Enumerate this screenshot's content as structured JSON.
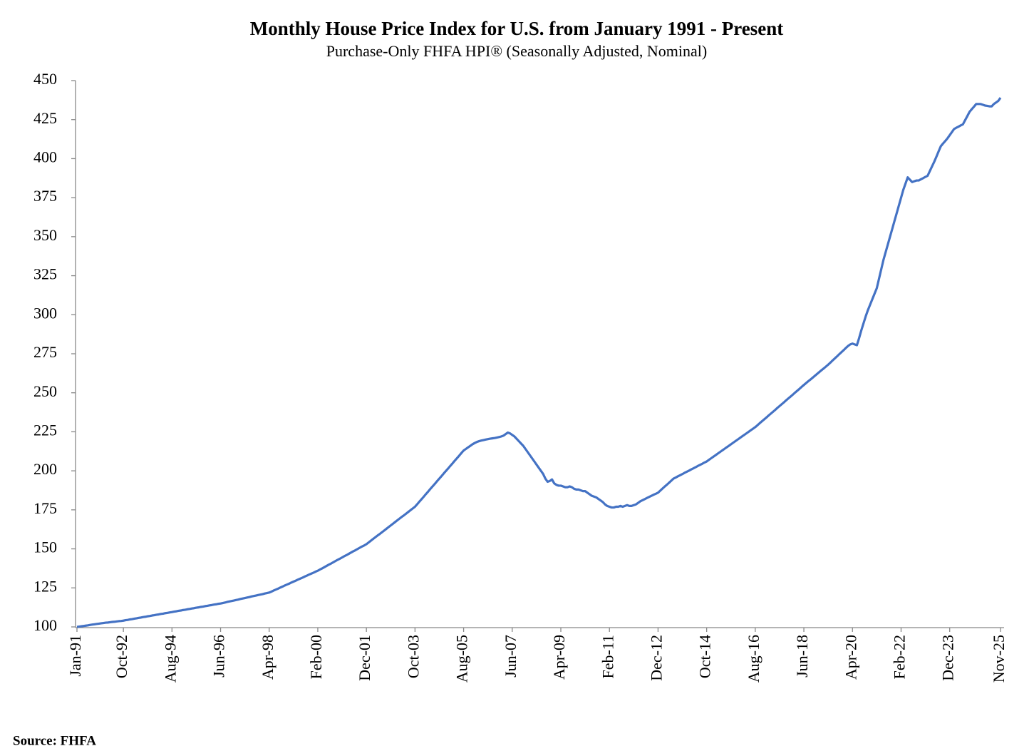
{
  "chart_data": {
    "type": "line",
    "title": "Monthly House Price Index for U.S. from January 1991 - Present",
    "subtitle": "Purchase-Only FHFA HPI® (Seasonally Adjusted, Nominal)",
    "source": "Source: FHFA",
    "color": "#4472c4",
    "ylim": [
      100,
      450
    ],
    "yticks": [
      100,
      125,
      150,
      175,
      200,
      225,
      250,
      275,
      300,
      325,
      350,
      375,
      400,
      425,
      450
    ],
    "grid": false,
    "categories": [
      "Jan-91",
      null,
      null,
      null,
      null,
      null,
      null,
      null,
      null,
      null,
      null,
      null,
      null,
      null,
      null,
      null,
      null,
      null,
      null,
      null,
      null,
      "Oct-92",
      null,
      null,
      null,
      null,
      null,
      null,
      null,
      null,
      null,
      null,
      null,
      null,
      null,
      null,
      null,
      null,
      null,
      null,
      null,
      null,
      null,
      "Aug-94",
      null,
      null,
      null,
      null,
      null,
      null,
      null,
      null,
      null,
      null,
      null,
      null,
      null,
      null,
      null,
      null,
      null,
      null,
      null,
      null,
      null,
      "Jun-96",
      null,
      null,
      null,
      null,
      null,
      null,
      null,
      null,
      null,
      null,
      null,
      null,
      null,
      null,
      null,
      null,
      null,
      null,
      null,
      null,
      null,
      "Apr-98",
      null,
      null,
      null,
      null,
      null,
      null,
      null,
      null,
      null,
      null,
      null,
      null,
      null,
      null,
      null,
      null,
      null,
      null,
      null,
      null,
      null,
      "Feb-00",
      null,
      null,
      null,
      null,
      null,
      null,
      null,
      null,
      null,
      null,
      null,
      null,
      null,
      null,
      null,
      null,
      null,
      null,
      null,
      null,
      null,
      "Dec-01",
      null,
      null,
      null,
      null,
      null,
      null,
      null,
      null,
      null,
      null,
      null,
      null,
      null,
      null,
      null,
      null,
      null,
      null,
      null,
      null,
      null,
      "Oct-03",
      null,
      null,
      null,
      null,
      null,
      null,
      null,
      null,
      null,
      null,
      null,
      null,
      null,
      null,
      null,
      null,
      null,
      null,
      null,
      null,
      null,
      "Aug-05",
      null,
      null,
      null,
      null,
      null,
      null,
      null,
      null,
      null,
      null,
      null,
      null,
      null,
      null,
      null,
      null,
      null,
      null,
      null,
      null,
      null,
      "Jun-07",
      null,
      null,
      null,
      null,
      null,
      null,
      null,
      null,
      null,
      null,
      null,
      null,
      null,
      null,
      null,
      null,
      null,
      null,
      null,
      null,
      null,
      "Apr-09",
      null,
      null,
      null,
      null,
      null,
      null,
      null,
      null,
      null,
      null,
      null,
      null,
      null,
      null,
      null,
      null,
      null,
      null,
      null,
      null,
      null,
      "Feb-11",
      null,
      null,
      null,
      null,
      null,
      null,
      null,
      null,
      null,
      null,
      null,
      null,
      null,
      null,
      null,
      null,
      null,
      null,
      null,
      null,
      null,
      "Dec-12",
      null,
      null,
      null,
      null,
      null,
      null,
      null,
      null,
      null,
      null,
      null,
      null,
      null,
      null,
      null,
      null,
      null,
      null,
      null,
      null,
      null,
      "Oct-14",
      null,
      null,
      null,
      null,
      null,
      null,
      null,
      null,
      null,
      null,
      null,
      null,
      null,
      null,
      null,
      null,
      null,
      null,
      null,
      null,
      null,
      "Aug-16",
      null,
      null,
      null,
      null,
      null,
      null,
      null,
      null,
      null,
      null,
      null,
      null,
      null,
      null,
      null,
      null,
      null,
      null,
      null,
      null,
      null,
      "Jun-18",
      null,
      null,
      null,
      null,
      null,
      null,
      null,
      null,
      null,
      null,
      null,
      null,
      null,
      null,
      null,
      null,
      null,
      null,
      null,
      null,
      null,
      "Apr-20",
      null,
      null,
      null,
      null,
      null,
      null,
      null,
      null,
      null,
      null,
      null,
      null,
      null,
      null,
      null,
      null,
      null,
      null,
      null,
      null,
      null,
      "Feb-22",
      null,
      null,
      null,
      null,
      null,
      null,
      null,
      null,
      null,
      null,
      null,
      null,
      null,
      null,
      null,
      null,
      null,
      null,
      null,
      null,
      null,
      "Dec-23",
      null,
      null,
      null,
      null,
      null,
      null,
      null,
      null,
      null,
      null,
      null,
      null,
      null,
      null,
      null,
      null,
      null,
      null,
      null,
      null,
      null,
      null,
      "Nov-25"
    ],
    "values": [
      100,
      100.2,
      100.4,
      100.6,
      100.8,
      101,
      101.3,
      101.5,
      101.7,
      101.9,
      102.1,
      102.3,
      102.5,
      102.7,
      102.8,
      103,
      103.2,
      103.3,
      103.5,
      103.7,
      103.8,
      104,
      104.3,
      104.5,
      104.8,
      105,
      105.3,
      105.5,
      105.8,
      106,
      106.3,
      106.5,
      106.8,
      107,
      107.3,
      107.5,
      107.8,
      108,
      108.3,
      108.5,
      108.8,
      109,
      109.3,
      109.5,
      109.8,
      110,
      110.3,
      110.5,
      110.8,
      111,
      111.3,
      111.5,
      111.8,
      112,
      112.3,
      112.5,
      112.8,
      113,
      113.3,
      113.5,
      113.8,
      114,
      114.3,
      114.5,
      114.8,
      115,
      115.3,
      115.6,
      116,
      116.3,
      116.6,
      116.9,
      117.2,
      117.5,
      117.9,
      118.2,
      118.5,
      118.8,
      119.1,
      119.5,
      119.8,
      120.1,
      120.4,
      120.7,
      121,
      121.4,
      121.7,
      122,
      122.6,
      123.3,
      123.9,
      124.5,
      125.2,
      125.8,
      126.5,
      127.1,
      127.7,
      128.4,
      129,
      129.6,
      130.3,
      130.9,
      131.5,
      132.2,
      132.8,
      133.5,
      134.1,
      134.7,
      135.4,
      136,
      136.8,
      137.5,
      138.3,
      139.1,
      139.9,
      140.6,
      141.4,
      142.2,
      143,
      143.7,
      144.5,
      145.3,
      146,
      146.8,
      147.6,
      148.4,
      149.1,
      149.9,
      150.7,
      151.5,
      152.2,
      153,
      154.1,
      155.2,
      156.3,
      157.4,
      158.5,
      159.5,
      160.6,
      161.7,
      162.8,
      163.9,
      165,
      166.1,
      167.2,
      168.3,
      169.4,
      170.5,
      171.5,
      172.6,
      173.7,
      174.8,
      175.9,
      177,
      178.6,
      180.3,
      181.9,
      183.5,
      185.2,
      186.8,
      188.5,
      190.1,
      191.7,
      193.4,
      195,
      196.6,
      198.3,
      199.9,
      201.5,
      203.2,
      204.8,
      206.5,
      208.1,
      209.7,
      211.4,
      213,
      214,
      215,
      216,
      217,
      217.8,
      218.5,
      219,
      219.4,
      219.7,
      220,
      220.3,
      220.6,
      220.8,
      221,
      221.3,
      221.6,
      222,
      222.5,
      223.5,
      224.5,
      224,
      223,
      222,
      220.5,
      219,
      217.5,
      216,
      214,
      212,
      210,
      208,
      206,
      204,
      202,
      200,
      198,
      195,
      193,
      193.5,
      194.5,
      192,
      191,
      190.5,
      190.5,
      190,
      189.5,
      189.5,
      190,
      189.5,
      188.5,
      188,
      188,
      187.5,
      187,
      187,
      186,
      185,
      184,
      183.5,
      183,
      182,
      181,
      180,
      178.5,
      177.5,
      177,
      176.5,
      176.5,
      177,
      177,
      177.5,
      177,
      177.5,
      178,
      177.5,
      177.5,
      178,
      178.5,
      179.5,
      180.5,
      181.2,
      181.9,
      182.6,
      183.3,
      184,
      184.7,
      185.3,
      186,
      187.3,
      188.6,
      189.9,
      191.1,
      192.4,
      193.7,
      195,
      195.7,
      196.5,
      197.2,
      197.9,
      198.7,
      199.4,
      200.1,
      200.9,
      201.6,
      202.3,
      203.1,
      203.8,
      204.5,
      205.3,
      206,
      207,
      208,
      209,
      210,
      211,
      212,
      213,
      214,
      215,
      216,
      217,
      218,
      219,
      220,
      221,
      222,
      223,
      224,
      225,
      226,
      227,
      228,
      229.2,
      230.5,
      231.7,
      232.9,
      234.1,
      235.4,
      236.6,
      237.8,
      239,
      240.3,
      241.5,
      242.7,
      243.9,
      245.2,
      246.4,
      247.6,
      248.8,
      250.1,
      251.3,
      252.5,
      253.8,
      255,
      256.2,
      257.4,
      258.5,
      259.7,
      260.9,
      262.1,
      263.3,
      264.5,
      265.6,
      266.8,
      268,
      269.3,
      270.7,
      272,
      273.3,
      274.7,
      276,
      277.3,
      278.7,
      280,
      281,
      281.5,
      281,
      280.5,
      285,
      290,
      294.5,
      299,
      303,
      306.5,
      310,
      313.5,
      317,
      323,
      329,
      335,
      340,
      345,
      350,
      355,
      360,
      365,
      370,
      375,
      380,
      384,
      388,
      386.5,
      385,
      385.5,
      386,
      386,
      386.8,
      387.5,
      388.3,
      389,
      392,
      395,
      398,
      401.3,
      404.7,
      408,
      409.7,
      411.3,
      413,
      415,
      417,
      419,
      419.8,
      420.5,
      421.3,
      422,
      424.7,
      427.3,
      430,
      431.7,
      433.3,
      435,
      435,
      435,
      434.5,
      434,
      433.8,
      433.5,
      433.5,
      435,
      436,
      437,
      439
    ]
  }
}
